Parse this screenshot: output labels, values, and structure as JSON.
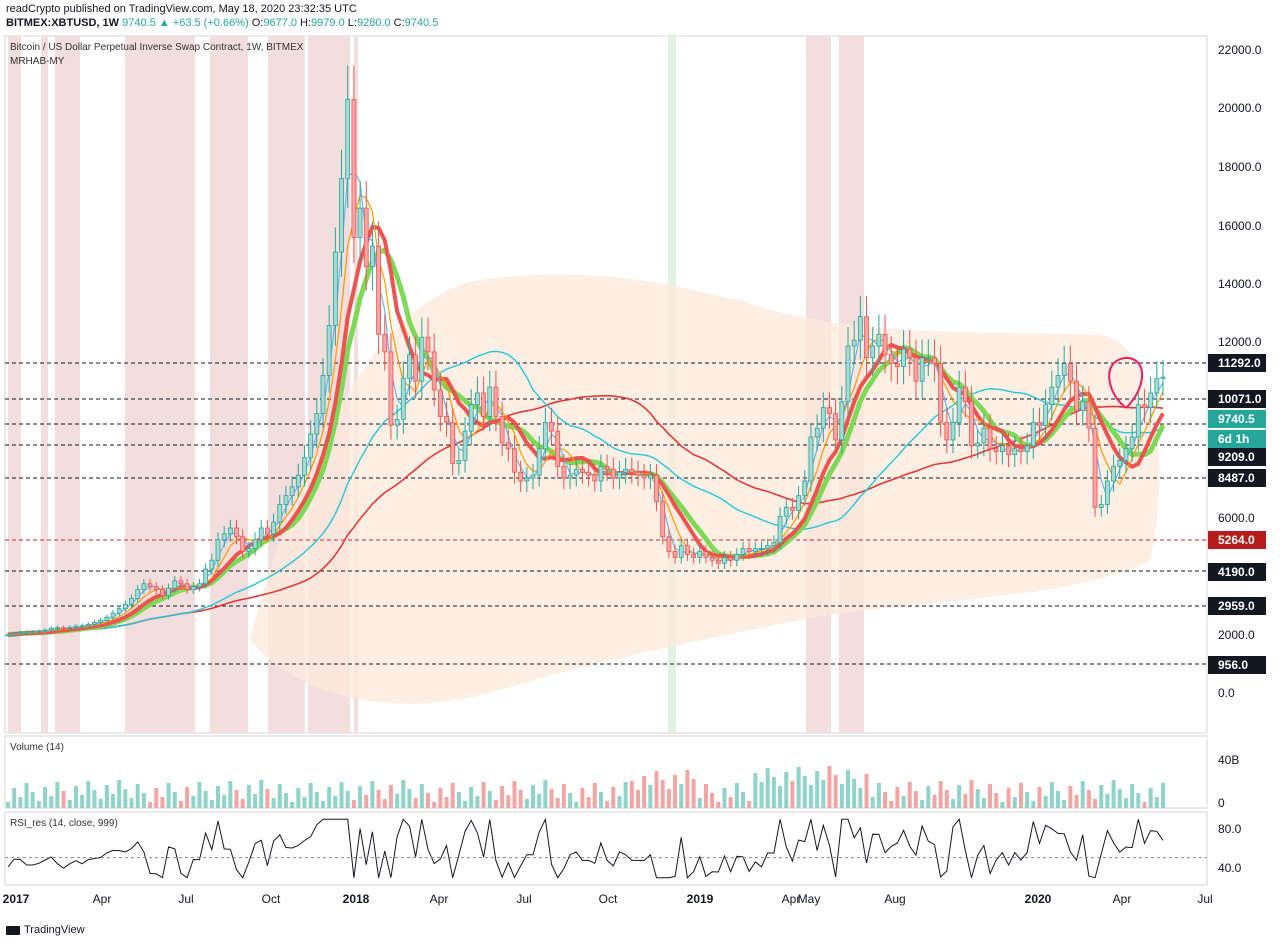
{
  "header": {
    "line1": "readCrypto published on TradingView.com, May 18, 2020 23:32:35 UTC",
    "symbol": "BITMEX:XBTUSD, 1W",
    "last": "9740.5",
    "change": "+63.5 (+0.66%)",
    "o_label": "O:",
    "o": "9677.0",
    "h_label": "H:",
    "h": "9979.0",
    "l_label": "L:",
    "l": "9280.0",
    "c_label": "C:",
    "c": "9740.5"
  },
  "legend": {
    "title": "Bitcoin / US Dollar Perpetual Inverse Swap Contract, 1W, BITMEX",
    "indicator": "MRHAB-MY"
  },
  "volume_legend": "Volume (14)",
  "rsi_legend": "RSI_res (14, close, 999)",
  "footer": {
    "brand": "TradingView"
  },
  "colors": {
    "up": "#26a69a",
    "down": "#ef5350",
    "ema_fast": "#64b5f6",
    "ema_orange": "#ff9800",
    "band_green": "#7ed957",
    "band_red": "#ef5350",
    "sma_cyan": "#26c6da",
    "sma_red": "#e53935",
    "rsi_black": "#131722",
    "rsi_orange": "#ef6c00",
    "circle": "#e91e63"
  },
  "chart_data": {
    "type": "line",
    "price_axis": {
      "ticks": [
        "22000.0",
        "20000.0",
        "18000.0",
        "16000.0",
        "14000.0",
        "12000.0",
        "6000.0",
        "2000.0",
        "0.0"
      ]
    },
    "horizontal_levels": [
      {
        "value": "11292.0",
        "style": "black"
      },
      {
        "value": "10071.0",
        "style": "black"
      },
      {
        "value": "9740.5",
        "style": "teal"
      },
      {
        "value": "6d 1h",
        "style": "teal"
      },
      {
        "value": "9209.0",
        "style": "black"
      },
      {
        "value": "8487.0",
        "style": "black"
      },
      {
        "value": "5264.0",
        "style": "red"
      },
      {
        "value": "4190.0",
        "style": "black"
      },
      {
        "value": "2959.0",
        "style": "black"
      },
      {
        "value": "956.0",
        "style": "black"
      }
    ],
    "time_axis": [
      "2017",
      "Apr",
      "Jul",
      "Oct",
      "2018",
      "Apr",
      "Jul",
      "Oct",
      "2019",
      "Apr",
      "May",
      "Aug",
      "2020",
      "Apr",
      "Jul"
    ],
    "volume_axis": [
      "40B",
      "0"
    ],
    "rsi_axis": [
      "80.0",
      "40.0"
    ],
    "weekly_close": [
      960,
      1000,
      1040,
      1050,
      1060,
      1080,
      1120,
      1180,
      1200,
      1190,
      1210,
      1250,
      1270,
      1320,
      1380,
      1450,
      1560,
      1700,
      1850,
      2000,
      2200,
      2500,
      2700,
      2600,
      2500,
      2300,
      2550,
      2800,
      2700,
      2500,
      2600,
      2700,
      3200,
      3500,
      4200,
      4400,
      4600,
      4300,
      3800,
      3900,
      4200,
      4600,
      4400,
      4800,
      5400,
      5700,
      6000,
      6400,
      7000,
      7800,
      8500,
      9800,
      11500,
      14000,
      16500,
      19200,
      14500,
      15500,
      13500,
      14200,
      11200,
      10600,
      8100,
      8300,
      9700,
      10500,
      9600,
      11100,
      10600,
      9300,
      8400,
      8200,
      6800,
      6900,
      7900,
      8800,
      9200,
      8400,
      9400,
      8400,
      7500,
      7300,
      6500,
      6200,
      6300,
      6400,
      7300,
      8200,
      7900,
      6700,
      6300,
      6400,
      6600,
      6500,
      6400,
      6200,
      6700,
      6600,
      6300,
      6500,
      6600,
      6500,
      6400,
      6300,
      6400,
      5500,
      4300,
      3800,
      3600,
      4000,
      3700,
      3600,
      3800,
      3600,
      3500,
      3400,
      3600,
      3500,
      3700,
      3900,
      3800,
      3900,
      3900,
      4000,
      4100,
      5000,
      5300,
      5200,
      5700,
      6200,
      7700,
      8000,
      8700,
      8500,
      7600,
      8900,
      10800,
      11000,
      11800,
      10400,
      10800,
      11200,
      10500,
      10200,
      10100,
      10700,
      10400,
      9600,
      10400,
      10400,
      10200,
      8200,
      7600,
      8200,
      9400,
      8900,
      7400,
      7500,
      8000,
      7300,
      7200,
      7400,
      7100,
      7300,
      7200,
      7400,
      8200,
      8100,
      8800,
      9400,
      9800,
      10200,
      9600,
      8600,
      8900,
      8000,
      5300,
      5400,
      6200,
      6700,
      6900,
      7300,
      7700,
      8800,
      8700,
      9200,
      9700,
      9740
    ]
  }
}
